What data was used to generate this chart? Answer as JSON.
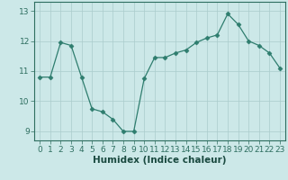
{
  "x": [
    0,
    1,
    2,
    3,
    4,
    5,
    6,
    7,
    8,
    9,
    10,
    11,
    12,
    13,
    14,
    15,
    16,
    17,
    18,
    19,
    20,
    21,
    22,
    23
  ],
  "y": [
    10.8,
    10.8,
    11.95,
    11.85,
    10.8,
    9.75,
    9.65,
    9.4,
    9.0,
    9.0,
    10.75,
    11.45,
    11.45,
    11.6,
    11.7,
    11.95,
    12.1,
    12.2,
    12.9,
    12.55,
    12.0,
    11.85,
    11.6,
    11.1
  ],
  "line_color": "#2e7d6e",
  "marker": "D",
  "marker_size": 2.5,
  "bg_color": "#cce8e8",
  "grid_color": "#aacccc",
  "xlabel": "Humidex (Indice chaleur)",
  "xlim": [
    -0.5,
    23.5
  ],
  "ylim": [
    8.7,
    13.3
  ],
  "yticks": [
    9,
    10,
    11,
    12,
    13
  ],
  "xticks": [
    0,
    1,
    2,
    3,
    4,
    5,
    6,
    7,
    8,
    9,
    10,
    11,
    12,
    13,
    14,
    15,
    16,
    17,
    18,
    19,
    20,
    21,
    22,
    23
  ],
  "tick_color": "#2e6e60",
  "label_color": "#1a4a40",
  "font_size": 6.5,
  "xlabel_size": 7.5
}
